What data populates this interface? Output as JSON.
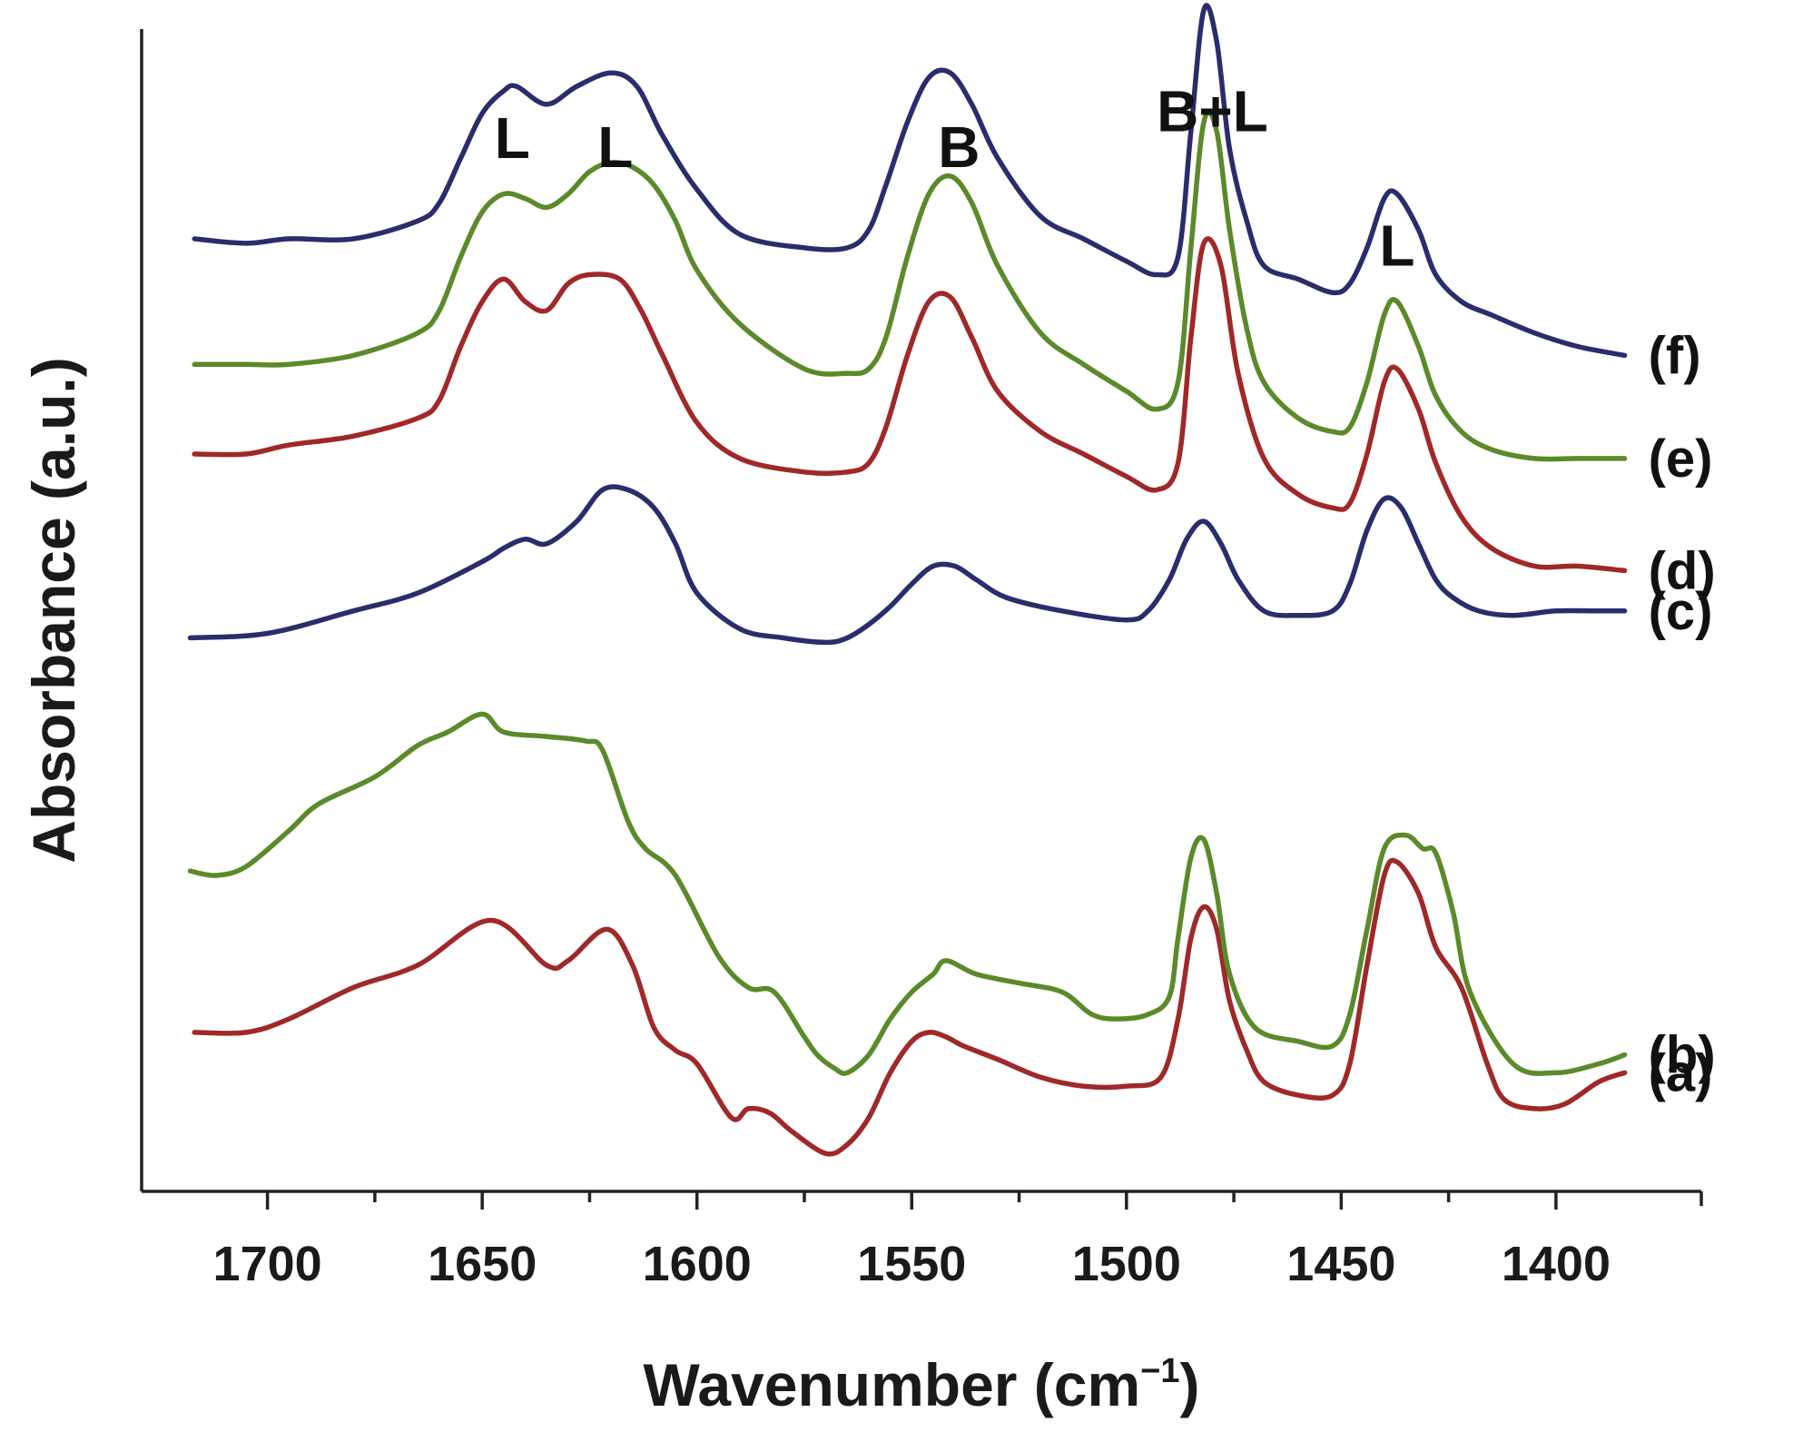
{
  "chart_data": {
    "type": "line",
    "xlabel_main": "Wavenumber (cm",
    "xlabel_sup": "−1",
    "xlabel_close": ")",
    "ylabel": "Absorbance (a.u.)",
    "xlim": [
      1720,
      1378
    ],
    "x_reversed": true,
    "x_ticks": [
      1700,
      1650,
      1600,
      1550,
      1500,
      1450,
      1400
    ],
    "x_tick_labels": [
      "1700",
      "1650",
      "1600",
      "1550",
      "1500",
      "1450",
      "1400"
    ],
    "ylim": [
      0,
      12
    ],
    "grid": false,
    "annotations": [
      {
        "text": "L",
        "x": 1643,
        "y": 11.3
      },
      {
        "text": "L",
        "x": 1619,
        "y": 11.2
      },
      {
        "text": "B",
        "x": 1539,
        "y": 11.2
      },
      {
        "text": "B+L",
        "x": 1480,
        "y": 11.6
      },
      {
        "text": "L",
        "x": 1437,
        "y": 10.1
      }
    ],
    "series": [
      {
        "name": "(a)",
        "color": "#a02828",
        "x": [
          1717,
          1705,
          1695,
          1680,
          1665,
          1648,
          1635,
          1630,
          1621,
          1615,
          1610,
          1605,
          1600,
          1592,
          1588,
          1583,
          1578,
          1570,
          1565,
          1560,
          1555,
          1550,
          1546,
          1542,
          1538,
          1530,
          1520,
          1510,
          1500,
          1492,
          1488,
          1485,
          1482,
          1479,
          1476,
          1472,
          1468,
          1460,
          1452,
          1448,
          1444,
          1440,
          1437,
          1432,
          1428,
          1422,
          1416,
          1412,
          1405,
          1398,
          1390,
          1384
        ],
        "y": [
          1.55,
          1.55,
          1.7,
          2.05,
          2.3,
          2.8,
          2.3,
          2.35,
          2.7,
          2.3,
          1.6,
          1.35,
          1.2,
          0.6,
          0.7,
          0.65,
          0.45,
          0.2,
          0.3,
          0.6,
          1.1,
          1.45,
          1.55,
          1.5,
          1.4,
          1.25,
          1.05,
          0.95,
          0.95,
          1.05,
          1.7,
          2.6,
          2.95,
          2.7,
          1.9,
          1.35,
          1.0,
          0.85,
          0.85,
          1.2,
          2.3,
          3.3,
          3.45,
          3.1,
          2.5,
          2.05,
          1.2,
          0.8,
          0.7,
          0.75,
          1.0,
          1.1
        ]
      },
      {
        "name": "(b)",
        "color": "#5b8a2a",
        "x": [
          1718,
          1712,
          1705,
          1695,
          1688,
          1675,
          1665,
          1658,
          1650,
          1645,
          1635,
          1626,
          1622,
          1616,
          1612,
          1605,
          1595,
          1588,
          1582,
          1575,
          1572,
          1568,
          1565,
          1560,
          1555,
          1550,
          1545,
          1542,
          1535,
          1525,
          1515,
          1508,
          1502,
          1495,
          1490,
          1488,
          1485,
          1482,
          1479,
          1476,
          1470,
          1460,
          1452,
          1448,
          1444,
          1440,
          1435,
          1431,
          1428,
          1424,
          1420,
          1410,
          1400,
          1390,
          1384
        ],
        "y": [
          3.35,
          3.3,
          3.4,
          3.8,
          4.1,
          4.4,
          4.75,
          4.9,
          5.1,
          4.9,
          4.85,
          4.8,
          4.7,
          3.9,
          3.6,
          3.3,
          2.4,
          2.05,
          2.0,
          1.5,
          1.3,
          1.15,
          1.1,
          1.3,
          1.7,
          2.0,
          2.2,
          2.35,
          2.2,
          2.1,
          2.0,
          1.75,
          1.7,
          1.75,
          1.95,
          2.6,
          3.5,
          3.7,
          3.1,
          2.2,
          1.6,
          1.45,
          1.4,
          1.75,
          2.7,
          3.6,
          3.75,
          3.6,
          3.55,
          2.9,
          2.0,
          1.2,
          1.1,
          1.2,
          1.3
        ]
      },
      {
        "name": "(c)",
        "color": "#2a2d6b",
        "x": [
          1718,
          1700,
          1680,
          1665,
          1650,
          1645,
          1640,
          1635,
          1628,
          1622,
          1616,
          1610,
          1605,
          1600,
          1590,
          1580,
          1570,
          1565,
          1560,
          1555,
          1550,
          1545,
          1540,
          1535,
          1528,
          1515,
          1500,
          1495,
          1490,
          1486,
          1482,
          1478,
          1474,
          1468,
          1460,
          1452,
          1448,
          1444,
          1440,
          1436,
          1432,
          1428,
          1424,
          1418,
          1410,
          1400,
          1390,
          1384
        ],
        "y": [
          5.95,
          6.0,
          6.25,
          6.45,
          6.8,
          6.95,
          7.05,
          7.0,
          7.25,
          7.6,
          7.6,
          7.4,
          7.0,
          6.45,
          6.05,
          5.95,
          5.9,
          5.95,
          6.1,
          6.3,
          6.55,
          6.75,
          6.75,
          6.6,
          6.4,
          6.25,
          6.15,
          6.25,
          6.6,
          7.05,
          7.25,
          7.0,
          6.6,
          6.25,
          6.2,
          6.25,
          6.55,
          7.15,
          7.5,
          7.4,
          7.0,
          6.6,
          6.4,
          6.25,
          6.2,
          6.25,
          6.25,
          6.25
        ]
      },
      {
        "name": "(d)",
        "color": "#a02828",
        "x": [
          1717,
          1705,
          1695,
          1680,
          1665,
          1660,
          1655,
          1650,
          1645,
          1640,
          1635,
          1630,
          1625,
          1618,
          1613,
          1608,
          1600,
          1590,
          1575,
          1565,
          1560,
          1556,
          1551,
          1546,
          1541,
          1536,
          1530,
          1520,
          1510,
          1500,
          1493,
          1488,
          1485,
          1482,
          1478,
          1474,
          1468,
          1460,
          1452,
          1448,
          1444,
          1440,
          1437,
          1432,
          1428,
          1422,
          1415,
          1405,
          1395,
          1384
        ],
        "y": [
          8.0,
          8.0,
          8.1,
          8.2,
          8.4,
          8.6,
          9.2,
          9.7,
          9.95,
          9.7,
          9.6,
          9.9,
          10.0,
          9.95,
          9.6,
          9.1,
          8.35,
          7.95,
          7.8,
          7.8,
          7.9,
          8.3,
          9.1,
          9.7,
          9.75,
          9.3,
          8.7,
          8.25,
          8.0,
          7.75,
          7.6,
          7.9,
          9.3,
          10.35,
          10.1,
          8.9,
          7.95,
          7.55,
          7.4,
          7.45,
          8.0,
          8.8,
          8.95,
          8.5,
          7.9,
          7.3,
          6.95,
          6.75,
          6.75,
          6.7
        ]
      },
      {
        "name": "(e)",
        "color": "#5b8a2a",
        "x": [
          1717,
          1705,
          1695,
          1680,
          1665,
          1660,
          1655,
          1650,
          1645,
          1640,
          1635,
          1630,
          1625,
          1620,
          1615,
          1610,
          1605,
          1600,
          1590,
          1575,
          1565,
          1560,
          1556,
          1551,
          1546,
          1541,
          1536,
          1530,
          1520,
          1510,
          1500,
          1493,
          1488,
          1485,
          1482,
          1479,
          1476,
          1472,
          1468,
          1460,
          1452,
          1448,
          1444,
          1440,
          1437,
          1432,
          1428,
          1422,
          1415,
          1405,
          1395,
          1384
        ],
        "y": [
          9.0,
          9.0,
          9.0,
          9.1,
          9.35,
          9.6,
          10.2,
          10.7,
          10.9,
          10.85,
          10.75,
          10.9,
          11.15,
          11.25,
          11.2,
          11.0,
          10.6,
          10.05,
          9.45,
          8.95,
          8.9,
          8.95,
          9.3,
          10.2,
          10.9,
          11.1,
          10.8,
          10.1,
          9.35,
          9.0,
          8.7,
          8.5,
          8.8,
          10.3,
          11.7,
          11.6,
          10.5,
          9.4,
          8.8,
          8.4,
          8.25,
          8.3,
          8.8,
          9.55,
          9.7,
          9.2,
          8.65,
          8.25,
          8.05,
          7.95,
          7.95,
          7.95
        ]
      },
      {
        "name": "(f)",
        "color": "#2a2d6b",
        "x": [
          1717,
          1705,
          1695,
          1680,
          1665,
          1660,
          1655,
          1650,
          1645,
          1642,
          1635,
          1628,
          1620,
          1614,
          1608,
          1600,
          1590,
          1575,
          1565,
          1560,
          1556,
          1551,
          1546,
          1541,
          1536,
          1530,
          1520,
          1510,
          1500,
          1493,
          1488,
          1485,
          1482,
          1479,
          1476,
          1472,
          1468,
          1460,
          1452,
          1448,
          1444,
          1440,
          1437,
          1432,
          1428,
          1422,
          1415,
          1405,
          1395,
          1384
        ],
        "y": [
          10.4,
          10.35,
          10.4,
          10.4,
          10.6,
          10.8,
          11.3,
          11.8,
          12.05,
          12.1,
          11.9,
          12.1,
          12.25,
          12.1,
          11.55,
          10.95,
          10.45,
          10.3,
          10.3,
          10.5,
          11.0,
          11.7,
          12.2,
          12.25,
          11.9,
          11.3,
          10.65,
          10.4,
          10.15,
          10.0,
          10.2,
          11.6,
          12.95,
          12.6,
          11.4,
          10.6,
          10.1,
          9.95,
          9.8,
          9.9,
          10.3,
          10.85,
          10.9,
          10.5,
          10.0,
          9.7,
          9.55,
          9.35,
          9.2,
          9.1
        ]
      }
    ]
  }
}
